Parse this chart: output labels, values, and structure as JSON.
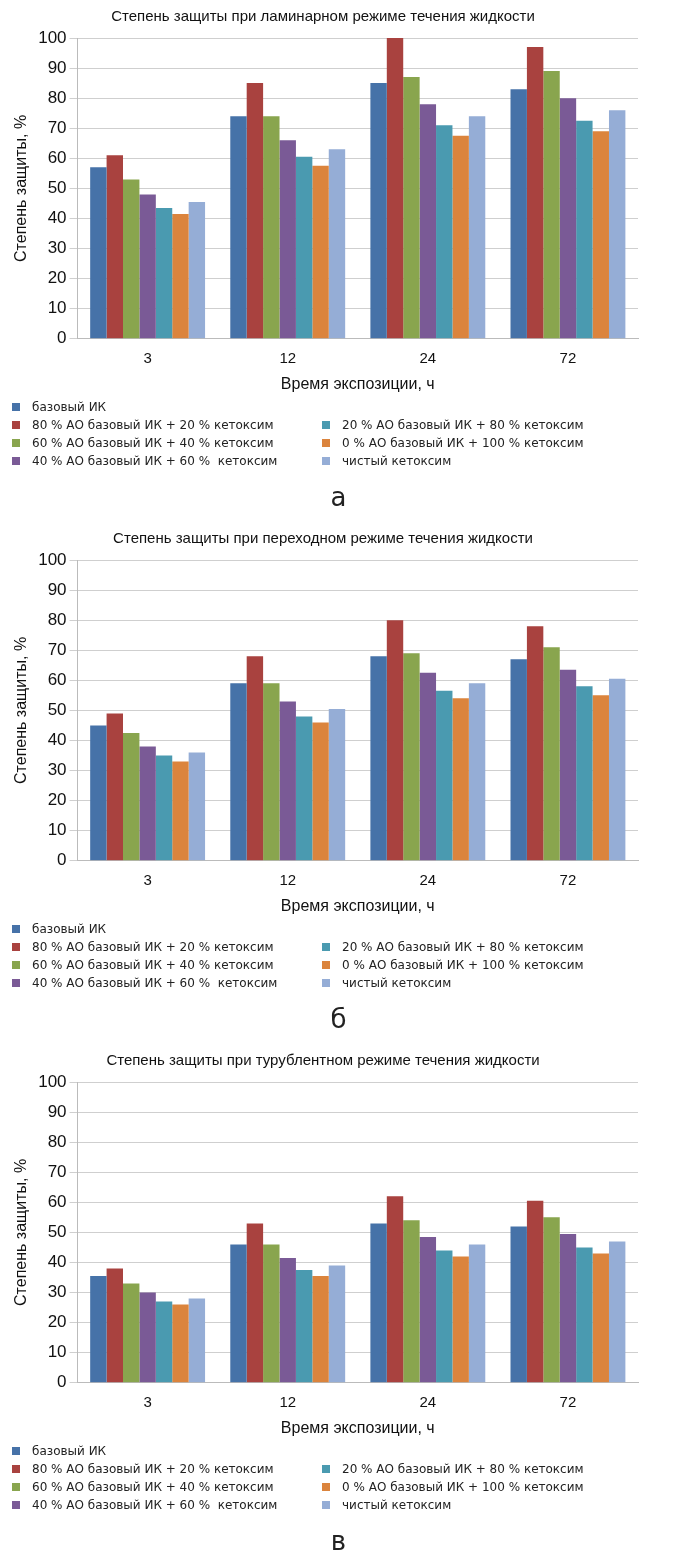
{
  "chart_data": [
    {
      "type": "bar",
      "title": "Степень защиты при ламинарном режиме течения жидкости",
      "xlabel": "Время экспозиции, ч",
      "ylabel": "Степень защиты, %",
      "categories": [
        "3",
        "12",
        "24",
        "72"
      ],
      "ylim": [
        0,
        100
      ],
      "yticks": [
        0,
        10,
        20,
        30,
        40,
        50,
        60,
        70,
        80,
        90,
        100
      ],
      "grid": "y",
      "legend": "bottom",
      "annotations": [
        "а"
      ],
      "series": [
        {
          "name": "базовый ИК",
          "color": "#4672a8",
          "values": [
            57,
            74,
            85,
            83
          ]
        },
        {
          "name": "80 % АО базовый ИК + 20 % кетоксим",
          "color": "#a9423f",
          "values": [
            61,
            85,
            100,
            97
          ]
        },
        {
          "name": "60 % АО базовый ИК + 40 % кетоксим",
          "color": "#89a54e",
          "values": [
            53,
            74,
            87,
            89
          ]
        },
        {
          "name": "40 % АО базовый ИК + 60 %  кетоксим",
          "color": "#7a5a96",
          "values": [
            48,
            66,
            78,
            80
          ]
        },
        {
          "name": "20 % АО базовый ИК + 80 % кетоксим",
          "color": "#4a9ab0",
          "values": [
            43.5,
            60.5,
            71,
            72.5
          ]
        },
        {
          "name": "0 % АО базовый ИК + 100 % кетоксим",
          "color": "#db843d",
          "values": [
            41.5,
            57.5,
            67.5,
            69
          ]
        },
        {
          "name": "чистый кетоксим",
          "color": "#95add6",
          "values": [
            45.5,
            63,
            74,
            76
          ]
        }
      ]
    },
    {
      "type": "bar",
      "title": "Степень защиты при переходном режиме течения жидкости",
      "xlabel": "Время экспозиции, ч",
      "ylabel": "Степень защиты, %",
      "categories": [
        "3",
        "12",
        "24",
        "72"
      ],
      "ylim": [
        0,
        100
      ],
      "yticks": [
        0,
        10,
        20,
        30,
        40,
        50,
        60,
        70,
        80,
        90,
        100
      ],
      "grid": "y",
      "legend": "bottom",
      "annotations": [
        "б"
      ],
      "series": [
        {
          "name": "базовый ИК",
          "color": "#4672a8",
          "values": [
            45,
            59,
            68,
            67
          ]
        },
        {
          "name": "80 % АО базовый ИК + 20 % кетоксим",
          "color": "#a9423f",
          "values": [
            49,
            68,
            80,
            78
          ]
        },
        {
          "name": "60 % АО базовый ИК + 40 % кетоксим",
          "color": "#89a54e",
          "values": [
            42.5,
            59,
            69,
            71
          ]
        },
        {
          "name": "40 % АО базовый ИК + 60 %  кетоксим",
          "color": "#7a5a96",
          "values": [
            38,
            53,
            62.5,
            63.5
          ]
        },
        {
          "name": "20 % АО базовый ИК + 80 % кетоксим",
          "color": "#4a9ab0",
          "values": [
            35,
            48,
            56.5,
            58
          ]
        },
        {
          "name": "0 % АО базовый ИК + 100 % кетоксим",
          "color": "#db843d",
          "values": [
            33,
            46,
            54,
            55
          ]
        },
        {
          "name": "чистый кетоксим",
          "color": "#95add6",
          "values": [
            36,
            50.5,
            59,
            60.5
          ]
        }
      ]
    },
    {
      "type": "bar",
      "title": "Степень защиты при турублентном режиме течения жидкости",
      "xlabel": "Время экспозиции, ч",
      "ylabel": "Степень защиты, %",
      "categories": [
        "3",
        "12",
        "24",
        "72"
      ],
      "ylim": [
        0,
        100
      ],
      "yticks": [
        0,
        10,
        20,
        30,
        40,
        50,
        60,
        70,
        80,
        90,
        100
      ],
      "grid": "y",
      "legend": "bottom",
      "annotations": [
        "в"
      ],
      "series": [
        {
          "name": "базовый ИК",
          "color": "#4672a8",
          "values": [
            35.5,
            46,
            53,
            52
          ]
        },
        {
          "name": "80 % АО базовый ИК + 20 % кетоксим",
          "color": "#a9423f",
          "values": [
            38,
            53,
            62,
            60.5
          ]
        },
        {
          "name": "60 % АО базовый ИК + 40 % кетоксим",
          "color": "#89a54e",
          "values": [
            33,
            46,
            54,
            55
          ]
        },
        {
          "name": "40 % АО базовый ИК + 60 %  кетоксим",
          "color": "#7a5a96",
          "values": [
            30,
            41.5,
            48.5,
            49.5
          ]
        },
        {
          "name": "20 % АО базовый ИК + 80 % кетоксим",
          "color": "#4a9ab0",
          "values": [
            27,
            37.5,
            44,
            45
          ]
        },
        {
          "name": "0 % АО базовый ИК + 100 % кетоксим",
          "color": "#db843d",
          "values": [
            26,
            35.5,
            42,
            43
          ]
        },
        {
          "name": "чистый кетоксим",
          "color": "#95add6",
          "values": [
            28,
            39,
            46,
            47
          ]
        }
      ]
    }
  ]
}
